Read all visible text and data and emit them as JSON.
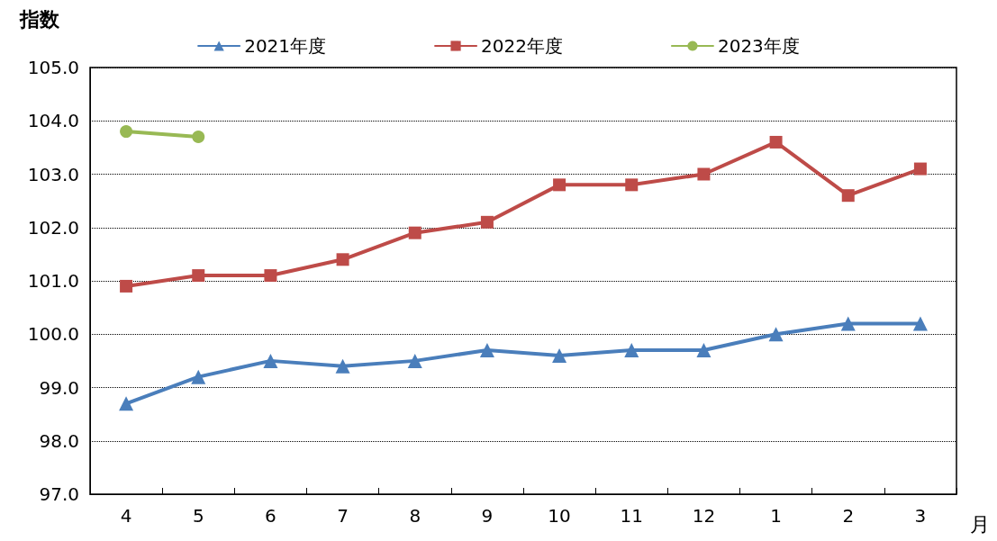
{
  "chart_data": {
    "type": "line",
    "xlabel": "月",
    "ylabel": "指数",
    "categories": [
      "4",
      "5",
      "6",
      "7",
      "8",
      "9",
      "10",
      "11",
      "12",
      "1",
      "2",
      "3"
    ],
    "series": [
      {
        "name": "2021年度",
        "color": "#4a7ebb",
        "marker": "triangle",
        "values": [
          98.7,
          99.2,
          99.5,
          99.4,
          99.5,
          99.7,
          99.6,
          99.7,
          99.7,
          100.0,
          100.2,
          100.2
        ]
      },
      {
        "name": "2022年度",
        "color": "#be4b48",
        "marker": "square",
        "values": [
          100.9,
          101.1,
          101.1,
          101.4,
          101.9,
          102.1,
          102.8,
          102.8,
          103.0,
          103.6,
          102.6,
          103.1
        ]
      },
      {
        "name": "2023年度",
        "color": "#98b954",
        "marker": "circle",
        "values": [
          103.8,
          103.7,
          null,
          null,
          null,
          null,
          null,
          null,
          null,
          null,
          null,
          null
        ]
      }
    ],
    "ylim": [
      97,
      105
    ],
    "yticks": [
      {
        "value": 97,
        "label": "97.0"
      },
      {
        "value": 98,
        "label": "98.0"
      },
      {
        "value": 99,
        "label": "99.0"
      },
      {
        "value": 100,
        "label": "100.0"
      },
      {
        "value": 101,
        "label": "101.0"
      },
      {
        "value": 102,
        "label": "102.0"
      },
      {
        "value": 103,
        "label": "103.0"
      },
      {
        "value": 104,
        "label": "104.0"
      },
      {
        "value": 105,
        "label": "105.0"
      }
    ],
    "grid": "y",
    "legend": "top",
    "line_style": "solid"
  }
}
